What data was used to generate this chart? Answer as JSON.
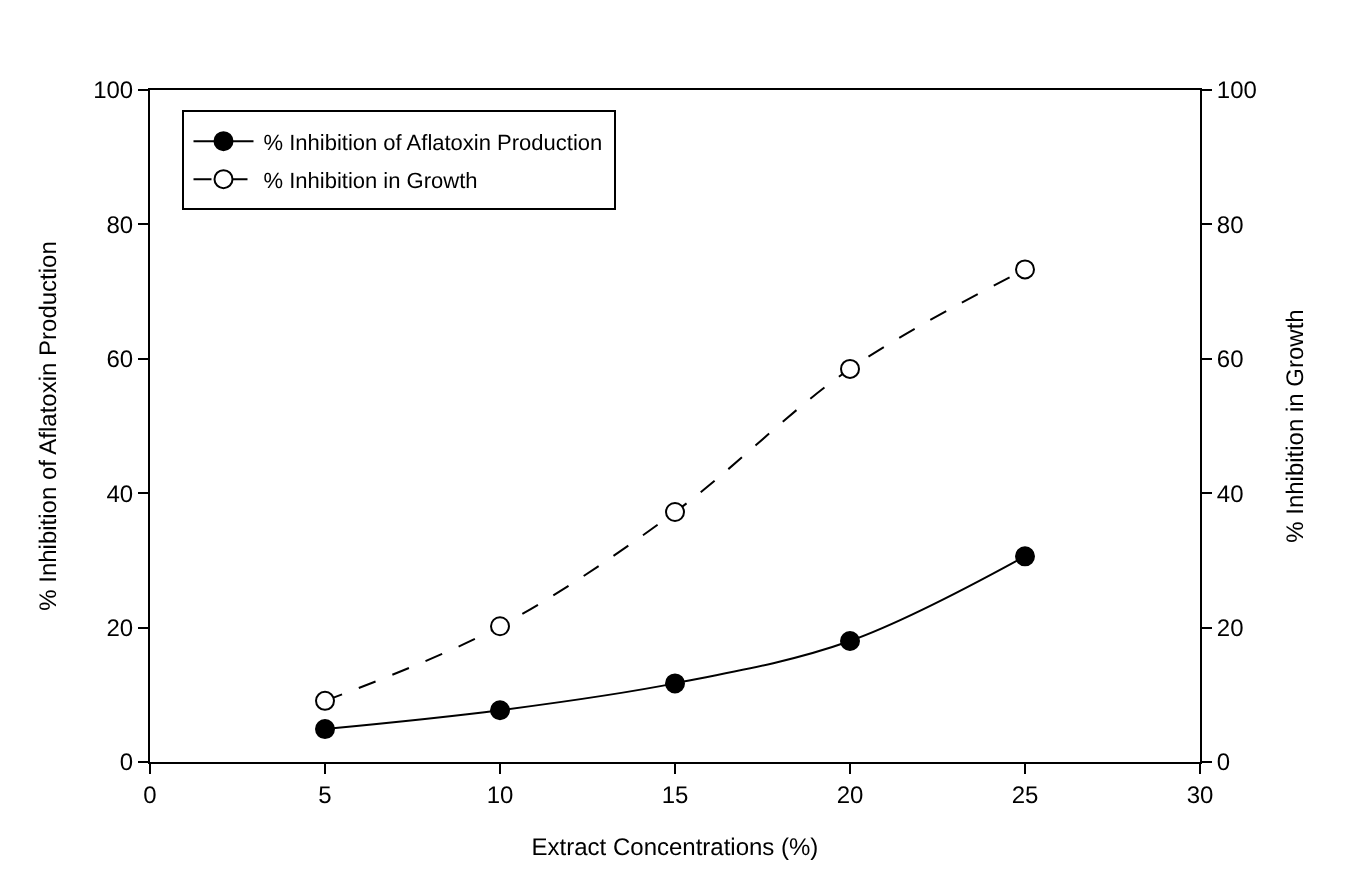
{
  "chart_data": {
    "type": "line",
    "xlabel": "Extract Concentrations (%)",
    "ylabel": "% Inhibition of Aflatoxin Production",
    "y2label": "% Inhibition in Growth",
    "x": [
      5,
      10,
      15,
      20,
      25
    ],
    "series": [
      {
        "name": "% Inhibition of Aflatoxin Production",
        "color": "#000000",
        "values": [
          4.9,
          7.7,
          11.7,
          18.0,
          30.6
        ],
        "marker": "circle",
        "line_style": "solid"
      },
      {
        "name": "% Inhibition in Growth",
        "color": "#000000",
        "values": [
          9.1,
          20.2,
          37.2,
          58.5,
          73.3
        ],
        "marker": "circle-open",
        "line_style": "dashed",
        "axis": "y2"
      }
    ],
    "xlim": [
      0,
      30
    ],
    "xticks": [
      0,
      5,
      10,
      15,
      20,
      25,
      30
    ],
    "ylim": [
      0,
      100
    ],
    "yticks": [
      0,
      20,
      40,
      60,
      80,
      100
    ],
    "y2lim": [
      0,
      100
    ],
    "y2ticks": [
      0,
      20,
      40,
      60,
      80,
      100
    ],
    "legend": "top left"
  }
}
